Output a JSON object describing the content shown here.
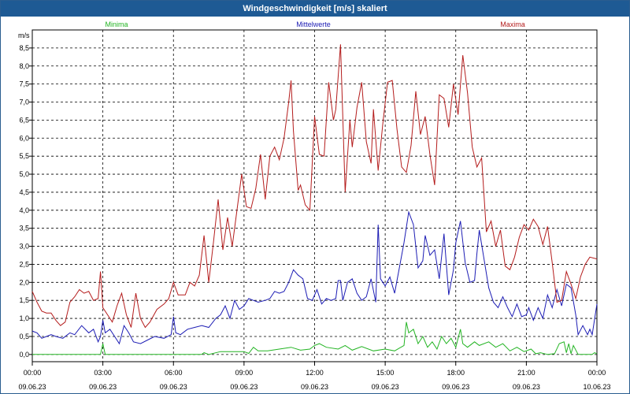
{
  "window": {
    "title": "Windgeschwindigkeit [m/s] skaliert"
  },
  "chart_data": {
    "type": "line",
    "title": "Windgeschwindigkeit [m/s] skaliert",
    "ylabel": "m/s",
    "ylim": [
      -0.2,
      9.0
    ],
    "yticks": [
      "0,0",
      "0,5",
      "1,0",
      "1,5",
      "2,0",
      "2,5",
      "3,0",
      "3,5",
      "4,0",
      "4,5",
      "5,0",
      "5,5",
      "6,0",
      "6,5",
      "7,0",
      "7,5",
      "8,0",
      "8,5"
    ],
    "xlim_hours": [
      0,
      24
    ],
    "xticks": [
      {
        "time": "00:00",
        "date": "09.06.23"
      },
      {
        "time": "03:00",
        "date": "09.06.23"
      },
      {
        "time": "06:00",
        "date": "09.06.23"
      },
      {
        "time": "09:00",
        "date": "09.06.23"
      },
      {
        "time": "12:00",
        "date": "09.06.23"
      },
      {
        "time": "15:00",
        "date": "09.06.23"
      },
      {
        "time": "18:00",
        "date": "09.06.23"
      },
      {
        "time": "21:00",
        "date": "09.06.23"
      },
      {
        "time": "00:00",
        "date": "10.06.23"
      }
    ],
    "grid": true,
    "legend_position": "top",
    "series": [
      {
        "name": "Minima",
        "color": "#22b422",
        "points": [
          [
            0,
            0
          ],
          [
            2.9,
            0
          ],
          [
            3.0,
            0.3
          ],
          [
            3.1,
            0
          ],
          [
            7.2,
            0
          ],
          [
            7.3,
            0.05
          ],
          [
            7.5,
            0
          ],
          [
            8.0,
            0.08
          ],
          [
            9.0,
            0.08
          ],
          [
            9.2,
            0.03
          ],
          [
            9.4,
            0.2
          ],
          [
            9.6,
            0.1
          ],
          [
            10.0,
            0.1
          ],
          [
            10.5,
            0.15
          ],
          [
            11.0,
            0.2
          ],
          [
            11.4,
            0.12
          ],
          [
            11.8,
            0.15
          ],
          [
            12.0,
            0.25
          ],
          [
            12.2,
            0.3
          ],
          [
            12.5,
            0.2
          ],
          [
            13.0,
            0.15
          ],
          [
            13.3,
            0.25
          ],
          [
            13.6,
            0.12
          ],
          [
            14.0,
            0.22
          ],
          [
            14.5,
            0.1
          ],
          [
            15.0,
            0.15
          ],
          [
            15.4,
            0.1
          ],
          [
            15.8,
            0.25
          ],
          [
            15.9,
            0.9
          ],
          [
            16.0,
            0.6
          ],
          [
            16.2,
            0.7
          ],
          [
            16.4,
            0.3
          ],
          [
            16.6,
            0.5
          ],
          [
            16.8,
            0.2
          ],
          [
            17.0,
            0.35
          ],
          [
            17.2,
            0.15
          ],
          [
            17.4,
            0.5
          ],
          [
            17.6,
            0.3
          ],
          [
            17.8,
            0.45
          ],
          [
            18.0,
            0.2
          ],
          [
            18.2,
            0.7
          ],
          [
            18.3,
            0.3
          ],
          [
            18.5,
            0.2
          ],
          [
            18.8,
            0.35
          ],
          [
            19.0,
            0.25
          ],
          [
            19.4,
            0.35
          ],
          [
            19.7,
            0.2
          ],
          [
            20.0,
            0.3
          ],
          [
            20.3,
            0.1
          ],
          [
            20.6,
            0.2
          ],
          [
            20.9,
            0.08
          ],
          [
            21.2,
            0.15
          ],
          [
            21.4,
            0.02
          ],
          [
            21.6,
            0.05
          ],
          [
            21.9,
            0
          ],
          [
            22.2,
            0.02
          ],
          [
            22.4,
            0.3
          ],
          [
            22.6,
            0.35
          ],
          [
            22.7,
            0.05
          ],
          [
            22.8,
            0.3
          ],
          [
            22.9,
            0.02
          ],
          [
            23.0,
            0.25
          ],
          [
            23.2,
            0
          ],
          [
            23.8,
            0
          ],
          [
            23.9,
            0.05
          ],
          [
            24.0,
            0.02
          ]
        ]
      },
      {
        "name": "Mittelwerte",
        "color": "#1c1cb4",
        "points": [
          [
            0,
            0.65
          ],
          [
            0.2,
            0.6
          ],
          [
            0.4,
            0.45
          ],
          [
            0.6,
            0.5
          ],
          [
            0.8,
            0.55
          ],
          [
            1.0,
            0.5
          ],
          [
            1.3,
            0.45
          ],
          [
            1.6,
            0.6
          ],
          [
            1.8,
            0.55
          ],
          [
            2.1,
            0.8
          ],
          [
            2.4,
            0.6
          ],
          [
            2.6,
            0.7
          ],
          [
            2.8,
            0.35
          ],
          [
            2.9,
            0.5
          ],
          [
            3.0,
            0.95
          ],
          [
            3.1,
            0.6
          ],
          [
            3.3,
            0.7
          ],
          [
            3.5,
            0.5
          ],
          [
            3.7,
            0.3
          ],
          [
            3.9,
            0.8
          ],
          [
            4.1,
            0.6
          ],
          [
            4.3,
            0.35
          ],
          [
            4.6,
            0.3
          ],
          [
            4.9,
            0.4
          ],
          [
            5.2,
            0.5
          ],
          [
            5.6,
            0.45
          ],
          [
            5.9,
            0.55
          ],
          [
            6.0,
            1.05
          ],
          [
            6.1,
            0.6
          ],
          [
            6.3,
            0.55
          ],
          [
            6.6,
            0.7
          ],
          [
            6.9,
            0.75
          ],
          [
            7.2,
            0.8
          ],
          [
            7.5,
            0.75
          ],
          [
            7.8,
            1.0
          ],
          [
            8.0,
            1.1
          ],
          [
            8.2,
            1.35
          ],
          [
            8.4,
            1.0
          ],
          [
            8.6,
            1.5
          ],
          [
            8.8,
            1.25
          ],
          [
            9.0,
            1.35
          ],
          [
            9.2,
            1.55
          ],
          [
            9.4,
            1.5
          ],
          [
            9.6,
            1.45
          ],
          [
            9.9,
            1.5
          ],
          [
            10.1,
            1.55
          ],
          [
            10.3,
            1.75
          ],
          [
            10.5,
            1.7
          ],
          [
            10.7,
            1.75
          ],
          [
            10.9,
            2.0
          ],
          [
            11.1,
            2.35
          ],
          [
            11.3,
            2.2
          ],
          [
            11.5,
            2.1
          ],
          [
            11.7,
            1.55
          ],
          [
            11.9,
            1.5
          ],
          [
            12.1,
            1.8
          ],
          [
            12.3,
            1.4
          ],
          [
            12.5,
            1.55
          ],
          [
            12.7,
            1.5
          ],
          [
            12.9,
            1.55
          ],
          [
            13.0,
            2.05
          ],
          [
            13.1,
            2.05
          ],
          [
            13.2,
            1.5
          ],
          [
            13.4,
            2.0
          ],
          [
            13.6,
            2.1
          ],
          [
            13.8,
            1.7
          ],
          [
            14.0,
            1.5
          ],
          [
            14.2,
            1.6
          ],
          [
            14.4,
            2.1
          ],
          [
            14.6,
            1.45
          ],
          [
            14.7,
            3.6
          ],
          [
            14.8,
            2.1
          ],
          [
            15.0,
            1.9
          ],
          [
            15.2,
            2.15
          ],
          [
            15.4,
            1.7
          ],
          [
            15.6,
            2.4
          ],
          [
            15.8,
            3.1
          ],
          [
            16.0,
            3.95
          ],
          [
            16.2,
            3.6
          ],
          [
            16.4,
            2.4
          ],
          [
            16.6,
            2.6
          ],
          [
            16.7,
            3.3
          ],
          [
            16.9,
            2.75
          ],
          [
            17.1,
            2.9
          ],
          [
            17.3,
            2.1
          ],
          [
            17.5,
            3.35
          ],
          [
            17.7,
            1.65
          ],
          [
            17.9,
            2.35
          ],
          [
            18.0,
            3.1
          ],
          [
            18.2,
            3.7
          ],
          [
            18.4,
            2.55
          ],
          [
            18.6,
            2.0
          ],
          [
            18.8,
            2.05
          ],
          [
            18.9,
            2.8
          ],
          [
            19.0,
            3.45
          ],
          [
            19.2,
            2.65
          ],
          [
            19.4,
            1.85
          ],
          [
            19.6,
            1.45
          ],
          [
            19.8,
            1.3
          ],
          [
            20.0,
            1.6
          ],
          [
            20.2,
            1.3
          ],
          [
            20.4,
            1.05
          ],
          [
            20.6,
            1.4
          ],
          [
            20.8,
            1.05
          ],
          [
            21.0,
            1.1
          ],
          [
            21.1,
            1.3
          ],
          [
            21.3,
            0.95
          ],
          [
            21.5,
            1.3
          ],
          [
            21.7,
            1.0
          ],
          [
            21.9,
            1.65
          ],
          [
            22.1,
            1.3
          ],
          [
            22.3,
            1.8
          ],
          [
            22.5,
            1.35
          ],
          [
            22.7,
            1.95
          ],
          [
            22.9,
            1.85
          ],
          [
            23.1,
            1.1
          ],
          [
            23.2,
            0.55
          ],
          [
            23.4,
            0.8
          ],
          [
            23.6,
            0.55
          ],
          [
            23.7,
            0.7
          ],
          [
            23.8,
            0.55
          ],
          [
            24.0,
            1.4
          ]
        ]
      },
      {
        "name": "Maxima",
        "color": "#b41c1c",
        "points": [
          [
            0,
            1.75
          ],
          [
            0.2,
            1.45
          ],
          [
            0.4,
            1.2
          ],
          [
            0.6,
            1.15
          ],
          [
            0.8,
            1.15
          ],
          [
            1.0,
            0.95
          ],
          [
            1.2,
            0.8
          ],
          [
            1.4,
            0.9
          ],
          [
            1.6,
            1.45
          ],
          [
            1.8,
            1.6
          ],
          [
            2.0,
            1.8
          ],
          [
            2.2,
            1.7
          ],
          [
            2.4,
            1.75
          ],
          [
            2.6,
            1.5
          ],
          [
            2.8,
            1.55
          ],
          [
            2.9,
            2.3
          ],
          [
            3.0,
            1.3
          ],
          [
            3.2,
            1.1
          ],
          [
            3.4,
            0.9
          ],
          [
            3.6,
            1.35
          ],
          [
            3.8,
            1.7
          ],
          [
            4.0,
            1.1
          ],
          [
            4.2,
            0.75
          ],
          [
            4.4,
            1.7
          ],
          [
            4.6,
            1.0
          ],
          [
            4.8,
            0.75
          ],
          [
            5.0,
            0.9
          ],
          [
            5.3,
            1.25
          ],
          [
            5.6,
            1.4
          ],
          [
            5.8,
            1.55
          ],
          [
            6.0,
            2.0
          ],
          [
            6.2,
            1.65
          ],
          [
            6.5,
            1.65
          ],
          [
            6.7,
            2.0
          ],
          [
            6.9,
            1.9
          ],
          [
            7.1,
            2.2
          ],
          [
            7.3,
            3.3
          ],
          [
            7.5,
            2.0
          ],
          [
            7.7,
            3.1
          ],
          [
            7.9,
            4.3
          ],
          [
            8.1,
            2.9
          ],
          [
            8.3,
            3.8
          ],
          [
            8.5,
            3.0
          ],
          [
            8.7,
            4.0
          ],
          [
            8.9,
            5.0
          ],
          [
            9.1,
            4.1
          ],
          [
            9.3,
            4.05
          ],
          [
            9.5,
            4.6
          ],
          [
            9.7,
            5.55
          ],
          [
            9.9,
            4.3
          ],
          [
            10.1,
            5.5
          ],
          [
            10.3,
            5.75
          ],
          [
            10.5,
            5.4
          ],
          [
            10.7,
            6.0
          ],
          [
            10.9,
            7.0
          ],
          [
            11.0,
            7.6
          ],
          [
            11.1,
            6.2
          ],
          [
            11.3,
            4.55
          ],
          [
            11.4,
            4.7
          ],
          [
            11.6,
            4.15
          ],
          [
            11.8,
            4.0
          ],
          [
            12.0,
            6.6
          ],
          [
            12.2,
            5.55
          ],
          [
            12.4,
            5.5
          ],
          [
            12.6,
            7.55
          ],
          [
            12.8,
            6.5
          ],
          [
            12.9,
            6.8
          ],
          [
            13.1,
            8.6
          ],
          [
            13.3,
            4.5
          ],
          [
            13.5,
            6.5
          ],
          [
            13.6,
            5.75
          ],
          [
            13.8,
            6.85
          ],
          [
            14.0,
            7.55
          ],
          [
            14.2,
            5.9
          ],
          [
            14.4,
            5.3
          ],
          [
            14.5,
            6.8
          ],
          [
            14.7,
            5.1
          ],
          [
            14.9,
            6.4
          ],
          [
            15.1,
            7.55
          ],
          [
            15.3,
            7.6
          ],
          [
            15.5,
            6.25
          ],
          [
            15.7,
            5.2
          ],
          [
            15.9,
            5.05
          ],
          [
            16.1,
            5.8
          ],
          [
            16.3,
            7.3
          ],
          [
            16.5,
            6.1
          ],
          [
            16.7,
            6.6
          ],
          [
            16.9,
            5.55
          ],
          [
            17.1,
            4.7
          ],
          [
            17.3,
            7.2
          ],
          [
            17.5,
            7.1
          ],
          [
            17.7,
            6.3
          ],
          [
            17.9,
            7.5
          ],
          [
            18.1,
            6.65
          ],
          [
            18.3,
            8.3
          ],
          [
            18.5,
            7.25
          ],
          [
            18.7,
            5.75
          ],
          [
            18.9,
            5.2
          ],
          [
            19.1,
            5.45
          ],
          [
            19.3,
            3.4
          ],
          [
            19.5,
            3.7
          ],
          [
            19.7,
            3.0
          ],
          [
            19.9,
            3.45
          ],
          [
            20.1,
            2.45
          ],
          [
            20.3,
            2.35
          ],
          [
            20.5,
            2.7
          ],
          [
            20.7,
            3.25
          ],
          [
            20.9,
            3.6
          ],
          [
            21.1,
            3.45
          ],
          [
            21.3,
            3.75
          ],
          [
            21.5,
            3.55
          ],
          [
            21.7,
            3.05
          ],
          [
            21.9,
            3.55
          ],
          [
            22.1,
            2.55
          ],
          [
            22.3,
            1.45
          ],
          [
            22.5,
            1.5
          ],
          [
            22.7,
            2.3
          ],
          [
            22.9,
            1.95
          ],
          [
            23.1,
            1.55
          ],
          [
            23.3,
            2.15
          ],
          [
            23.5,
            2.5
          ],
          [
            23.7,
            2.7
          ],
          [
            24.0,
            2.65
          ]
        ]
      }
    ]
  }
}
